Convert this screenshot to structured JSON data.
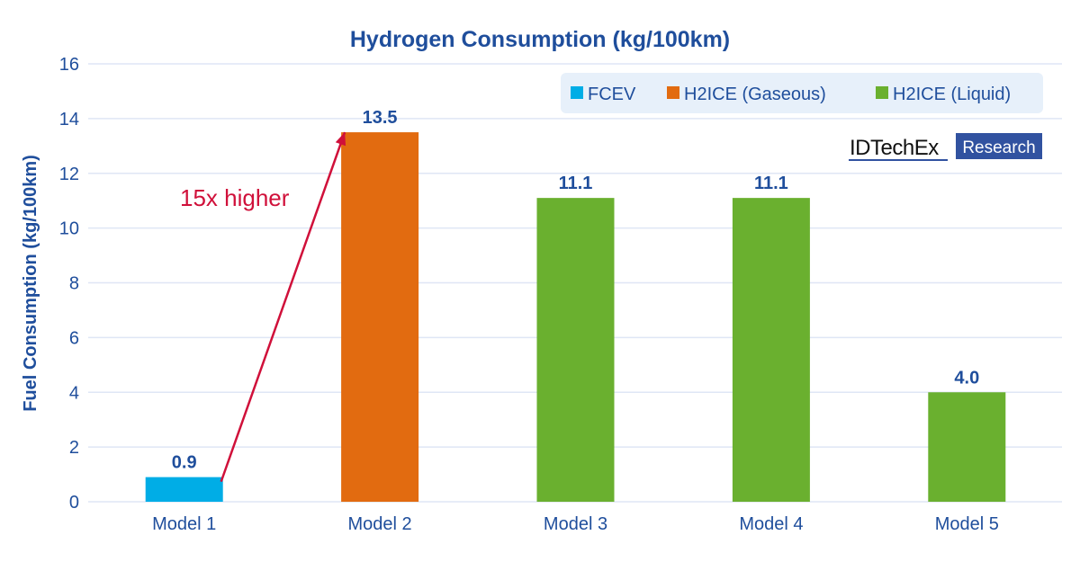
{
  "chart_data": {
    "type": "bar",
    "title": "Hydrogen Consumption (kg/100km)",
    "xlabel": "",
    "ylabel": "Fuel Consumption (kg/100km)",
    "ylim": [
      0,
      16
    ],
    "yticks": [
      0,
      2,
      4,
      6,
      8,
      10,
      12,
      14,
      16
    ],
    "grid": true,
    "legend_position": "top-right",
    "categories": [
      "Model 1",
      "Model 2",
      "Model 3",
      "Model 4",
      "Model 5"
    ],
    "values": [
      0.9,
      13.5,
      11.1,
      11.1,
      4.0
    ],
    "data_labels": [
      "0.9",
      "13.5",
      "11.1",
      "11.1",
      "4.0"
    ],
    "bar_series": [
      "FCEV",
      "H2ICE (Gaseous)",
      "H2ICE (Liquid)",
      "H2ICE (Liquid)",
      "H2ICE (Liquid)"
    ],
    "legend": [
      {
        "name": "FCEV",
        "color": "#00ade6"
      },
      {
        "name": "H2ICE (Gaseous)",
        "color": "#e26b10"
      },
      {
        "name": "H2ICE (Liquid)",
        "color": "#6ab02f"
      }
    ],
    "annotation": {
      "text": "15x higher",
      "color": "#d0103a",
      "from": "Model 1",
      "to": "Model 2"
    }
  },
  "logo": {
    "brand": "IDTechEx",
    "tag": "Research"
  },
  "colors": {
    "text": "#1f4e9c",
    "grid": "#dfe6f5",
    "legend_bg": "#e7f0fa",
    "logo_box": "#3152a0"
  }
}
